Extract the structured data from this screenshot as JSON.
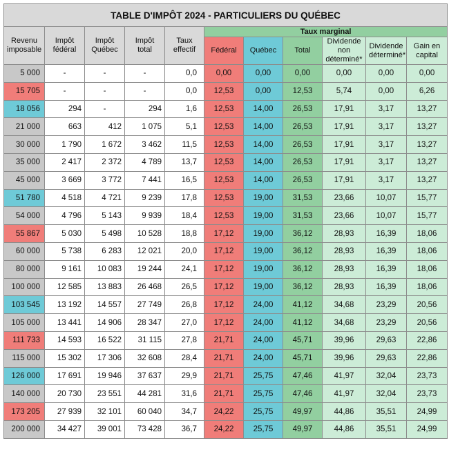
{
  "title": "TABLE D'IMPÔT 2024 - PARTICULIERS DU QUÉBEC",
  "group_header": "Taux marginal",
  "headers": [
    "Revenu imposable",
    "Impôt fédéral",
    "Impôt Québec",
    "Impôt total",
    "Taux effectif",
    "Fédéral",
    "Québec",
    "Total",
    "Dividende non déterminé*",
    "Dividende déterminé*",
    "Gain en capital"
  ],
  "colors": {
    "red": "#f07d79",
    "blue": "#6ecad7",
    "green": "#92cfa0",
    "light_green": "#ccecd7",
    "gray": "#c8c8c8"
  },
  "rows": [
    {
      "hl": "gray",
      "c": [
        "5 000",
        "-",
        "-",
        "-",
        "0,0",
        "0,00",
        "0,00",
        "0,00",
        "0,00",
        "0,00",
        "0,00"
      ]
    },
    {
      "hl": "red",
      "c": [
        "15 705",
        "-",
        "-",
        "-",
        "0,0",
        "12,53",
        "0,00",
        "12,53",
        "5,74",
        "0,00",
        "6,26"
      ]
    },
    {
      "hl": "blue",
      "c": [
        "18 056",
        "294",
        "-",
        "294",
        "1,6",
        "12,53",
        "14,00",
        "26,53",
        "17,91",
        "3,17",
        "13,27"
      ]
    },
    {
      "hl": "gray",
      "c": [
        "21 000",
        "663",
        "412",
        "1 075",
        "5,1",
        "12,53",
        "14,00",
        "26,53",
        "17,91",
        "3,17",
        "13,27"
      ]
    },
    {
      "hl": "gray",
      "c": [
        "30 000",
        "1 790",
        "1 672",
        "3 462",
        "11,5",
        "12,53",
        "14,00",
        "26,53",
        "17,91",
        "3,17",
        "13,27"
      ]
    },
    {
      "hl": "gray",
      "c": [
        "35 000",
        "2 417",
        "2 372",
        "4 789",
        "13,7",
        "12,53",
        "14,00",
        "26,53",
        "17,91",
        "3,17",
        "13,27"
      ]
    },
    {
      "hl": "gray",
      "c": [
        "45 000",
        "3 669",
        "3 772",
        "7 441",
        "16,5",
        "12,53",
        "14,00",
        "26,53",
        "17,91",
        "3,17",
        "13,27"
      ]
    },
    {
      "hl": "blue",
      "c": [
        "51 780",
        "4 518",
        "4 721",
        "9 239",
        "17,8",
        "12,53",
        "19,00",
        "31,53",
        "23,66",
        "10,07",
        "15,77"
      ]
    },
    {
      "hl": "gray",
      "c": [
        "54 000",
        "4 796",
        "5 143",
        "9 939",
        "18,4",
        "12,53",
        "19,00",
        "31,53",
        "23,66",
        "10,07",
        "15,77"
      ]
    },
    {
      "hl": "red",
      "c": [
        "55 867",
        "5 030",
        "5 498",
        "10 528",
        "18,8",
        "17,12",
        "19,00",
        "36,12",
        "28,93",
        "16,39",
        "18,06"
      ]
    },
    {
      "hl": "gray",
      "c": [
        "60 000",
        "5 738",
        "6 283",
        "12 021",
        "20,0",
        "17,12",
        "19,00",
        "36,12",
        "28,93",
        "16,39",
        "18,06"
      ]
    },
    {
      "hl": "gray",
      "c": [
        "80 000",
        "9 161",
        "10 083",
        "19 244",
        "24,1",
        "17,12",
        "19,00",
        "36,12",
        "28,93",
        "16,39",
        "18,06"
      ]
    },
    {
      "hl": "gray",
      "c": [
        "100 000",
        "12 585",
        "13 883",
        "26 468",
        "26,5",
        "17,12",
        "19,00",
        "36,12",
        "28,93",
        "16,39",
        "18,06"
      ]
    },
    {
      "hl": "blue",
      "c": [
        "103 545",
        "13 192",
        "14 557",
        "27 749",
        "26,8",
        "17,12",
        "24,00",
        "41,12",
        "34,68",
        "23,29",
        "20,56"
      ]
    },
    {
      "hl": "gray",
      "c": [
        "105 000",
        "13 441",
        "14 906",
        "28 347",
        "27,0",
        "17,12",
        "24,00",
        "41,12",
        "34,68",
        "23,29",
        "20,56"
      ]
    },
    {
      "hl": "red",
      "c": [
        "111 733",
        "14 593",
        "16 522",
        "31 115",
        "27,8",
        "21,71",
        "24,00",
        "45,71",
        "39,96",
        "29,63",
        "22,86"
      ]
    },
    {
      "hl": "gray",
      "c": [
        "115 000",
        "15 302",
        "17 306",
        "32 608",
        "28,4",
        "21,71",
        "24,00",
        "45,71",
        "39,96",
        "29,63",
        "22,86"
      ]
    },
    {
      "hl": "blue",
      "c": [
        "126 000",
        "17 691",
        "19 946",
        "37 637",
        "29,9",
        "21,71",
        "25,75",
        "47,46",
        "41,97",
        "32,04",
        "23,73"
      ]
    },
    {
      "hl": "gray",
      "c": [
        "140 000",
        "20 730",
        "23 551",
        "44 281",
        "31,6",
        "21,71",
        "25,75",
        "47,46",
        "41,97",
        "32,04",
        "23,73"
      ]
    },
    {
      "hl": "red",
      "c": [
        "173 205",
        "27 939",
        "32 101",
        "60 040",
        "34,7",
        "24,22",
        "25,75",
        "49,97",
        "44,86",
        "35,51",
        "24,99"
      ]
    },
    {
      "hl": "gray",
      "c": [
        "200 000",
        "34 427",
        "39 001",
        "73 428",
        "36,7",
        "24,22",
        "25,75",
        "49,97",
        "44,86",
        "35,51",
        "24,99"
      ]
    }
  ]
}
